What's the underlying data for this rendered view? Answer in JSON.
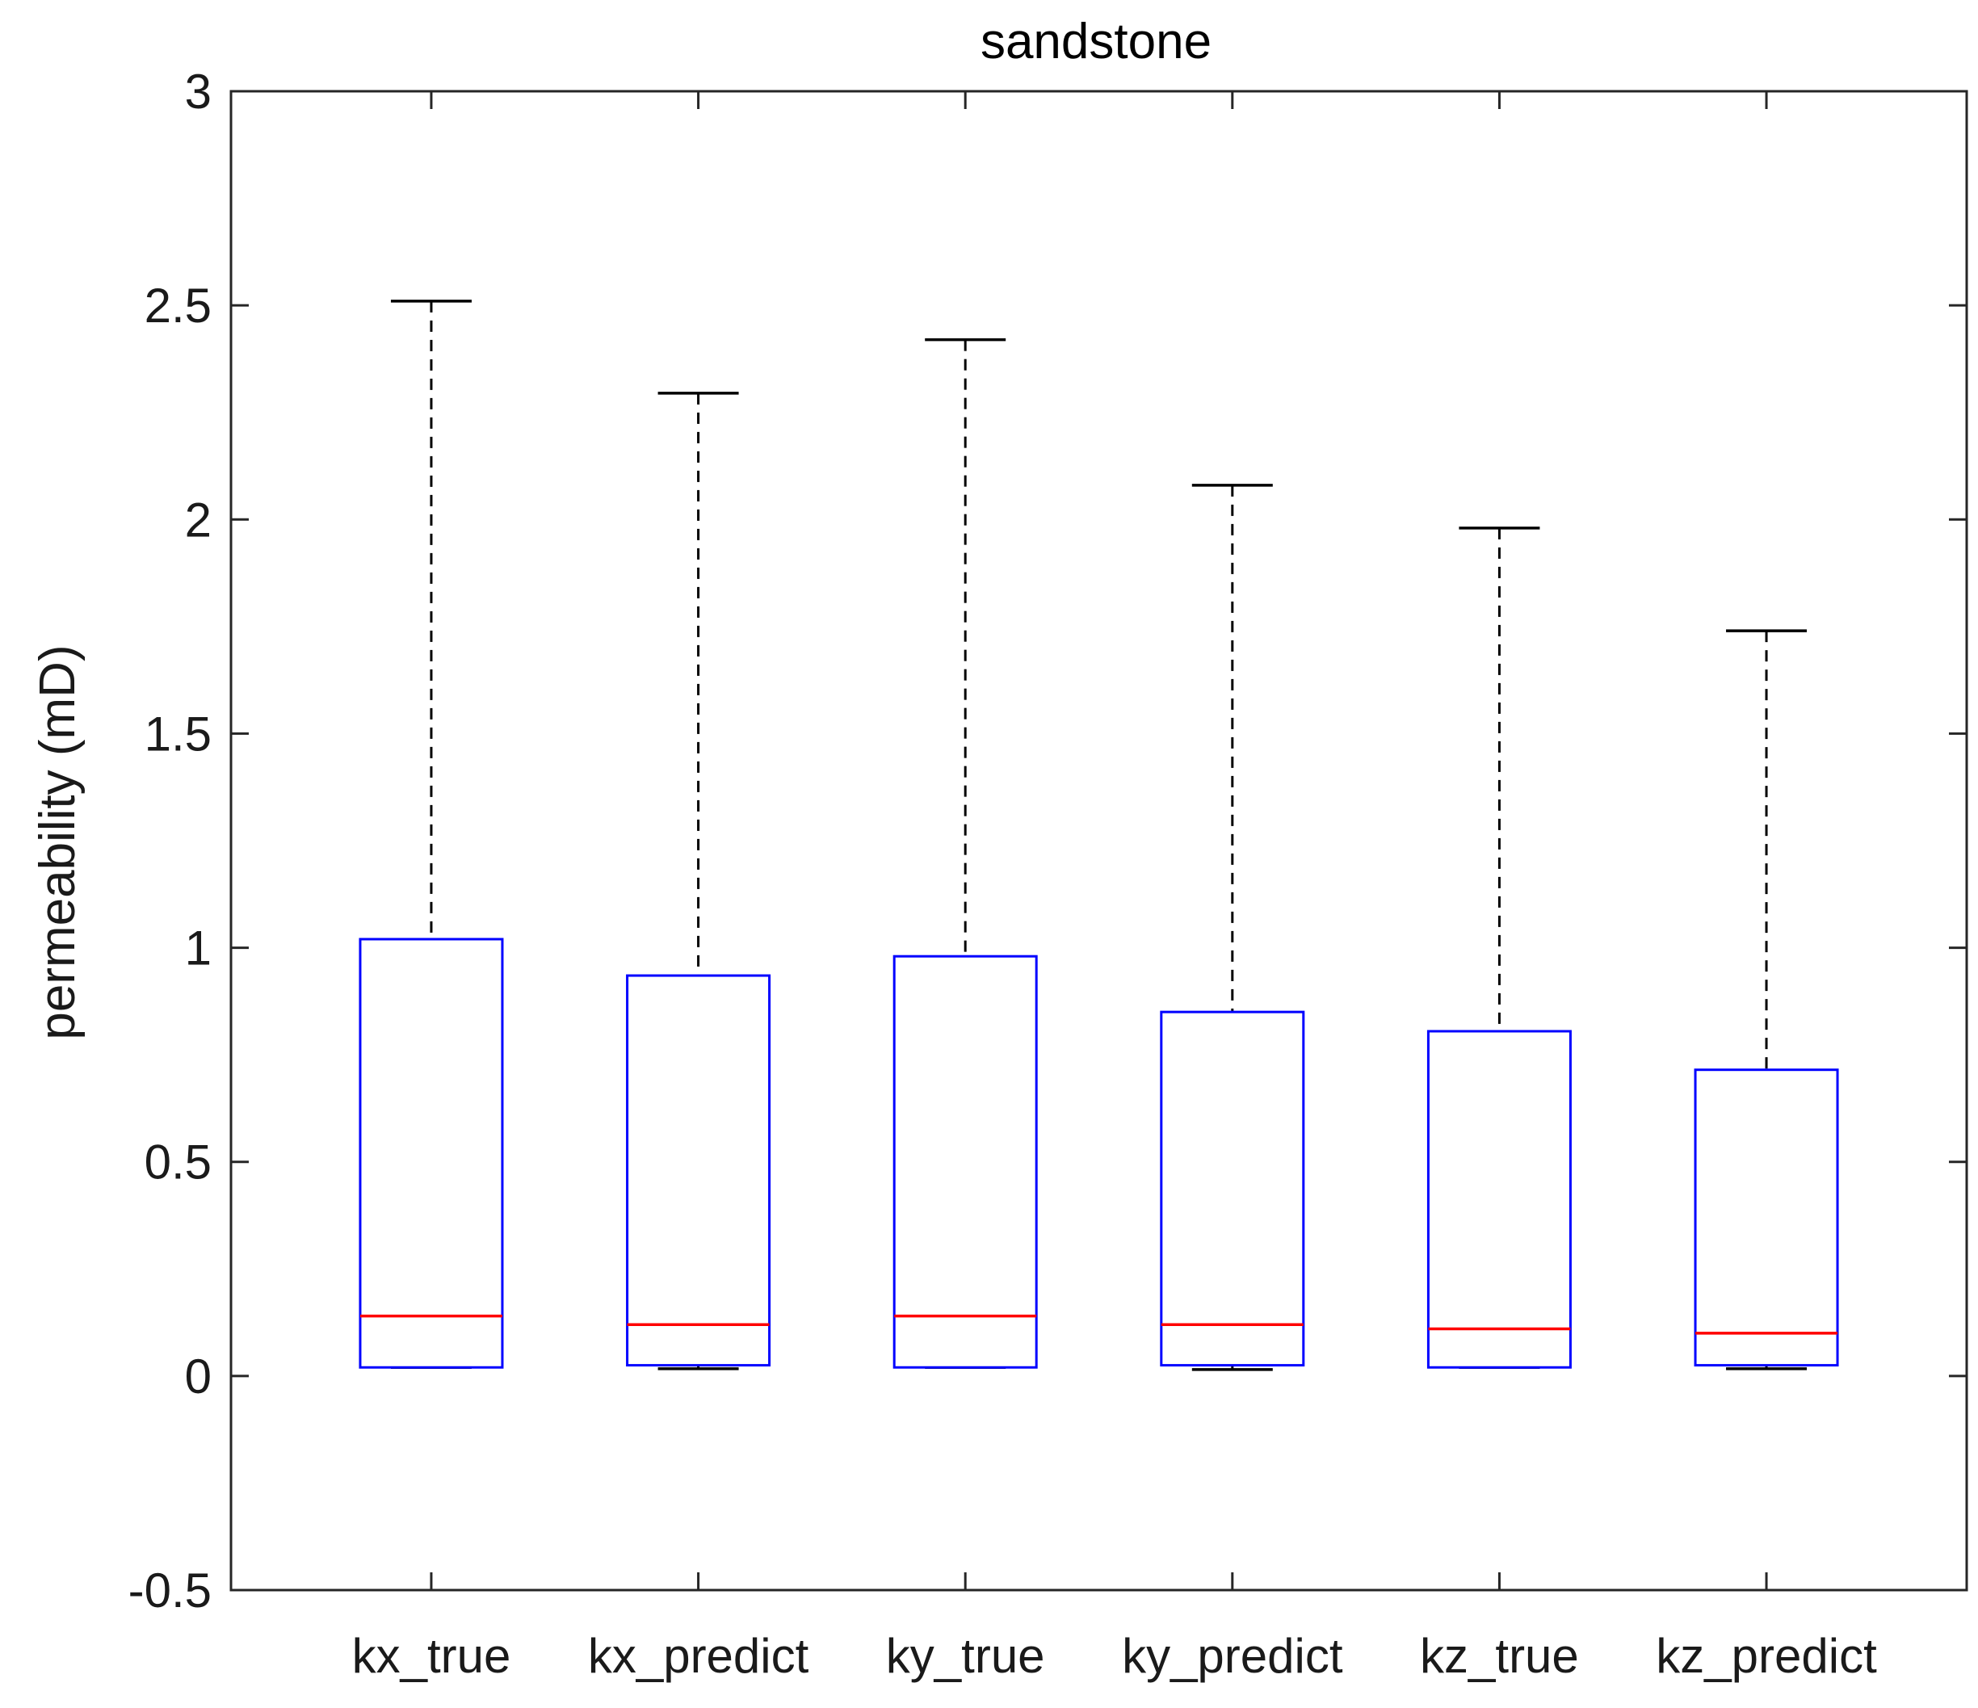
{
  "chart_data": {
    "type": "boxplot",
    "title": "sandstone",
    "xlabel": "",
    "ylabel": "permeability (mD)",
    "ylim": [
      -0.5,
      3
    ],
    "yticks": [
      -0.5,
      0,
      0.5,
      1,
      1.5,
      2,
      2.5,
      3
    ],
    "ytick_labels": [
      "-0.5",
      "0",
      "0.5",
      "1",
      "1.5",
      "2",
      "2.5",
      "3"
    ],
    "categories": [
      "kx_true",
      "kx_predict",
      "ky_true",
      "ky_predict",
      "kz_true",
      "kz_predict"
    ],
    "boxes": [
      {
        "name": "kx_true",
        "whisker_low": 0.02,
        "q1": 0.02,
        "median": 0.14,
        "q3": 1.02,
        "whisker_high": 2.51
      },
      {
        "name": "kx_predict",
        "whisker_low": 0.017,
        "q1": 0.025,
        "median": 0.12,
        "q3": 0.935,
        "whisker_high": 2.295
      },
      {
        "name": "ky_true",
        "whisker_low": 0.02,
        "q1": 0.02,
        "median": 0.14,
        "q3": 0.98,
        "whisker_high": 2.42
      },
      {
        "name": "ky_predict",
        "whisker_low": 0.015,
        "q1": 0.025,
        "median": 0.12,
        "q3": 0.85,
        "whisker_high": 2.08
      },
      {
        "name": "kz_true",
        "whisker_low": 0.02,
        "q1": 0.02,
        "median": 0.11,
        "q3": 0.805,
        "whisker_high": 1.98
      },
      {
        "name": "kz_predict",
        "whisker_low": 0.017,
        "q1": 0.025,
        "median": 0.1,
        "q3": 0.715,
        "whisker_high": 1.74
      }
    ],
    "colors": {
      "box": "#0000ff",
      "median": "#ff0000",
      "whisker": "#000000",
      "axis": "#262626"
    }
  }
}
